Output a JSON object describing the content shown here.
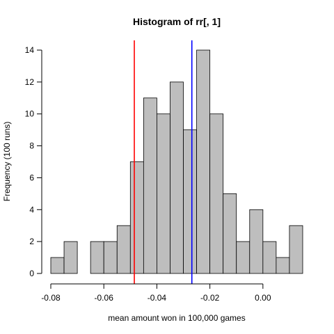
{
  "chart_data": {
    "type": "bar",
    "title": "Histogram of rr[, 1]",
    "xlabel": "mean amount won in 100,000 games",
    "ylabel": "Frequency (100 runs)",
    "bin_edges": [
      -0.08,
      -0.075,
      -0.07,
      -0.065,
      -0.06,
      -0.055,
      -0.05,
      -0.045,
      -0.04,
      -0.035,
      -0.03,
      -0.025,
      -0.02,
      -0.015,
      -0.01,
      -0.005,
      0.0,
      0.005,
      0.01,
      0.015
    ],
    "values": [
      1,
      2,
      0,
      2,
      2,
      3,
      7,
      11,
      10,
      12,
      9,
      14,
      10,
      5,
      2,
      4,
      2,
      1,
      3
    ],
    "xlim": [
      -0.08,
      0.015
    ],
    "ylim": [
      0,
      14
    ],
    "x_ticks": [
      -0.08,
      -0.06,
      -0.04,
      -0.02,
      0.0
    ],
    "x_tick_labels": [
      "-0.08",
      "-0.06",
      "-0.04",
      "-0.02",
      "0.00"
    ],
    "y_ticks": [
      0,
      2,
      4,
      6,
      8,
      10,
      12,
      14
    ],
    "y_tick_labels": [
      "0",
      "2",
      "4",
      "6",
      "8",
      "10",
      "12",
      "14"
    ],
    "bar_color": "#bebebe",
    "bar_border_color": "#000000",
    "grid": false,
    "reference_lines": [
      {
        "x": -0.0485,
        "color": "#ff0000"
      },
      {
        "x": -0.0268,
        "color": "#0000ff"
      }
    ]
  }
}
